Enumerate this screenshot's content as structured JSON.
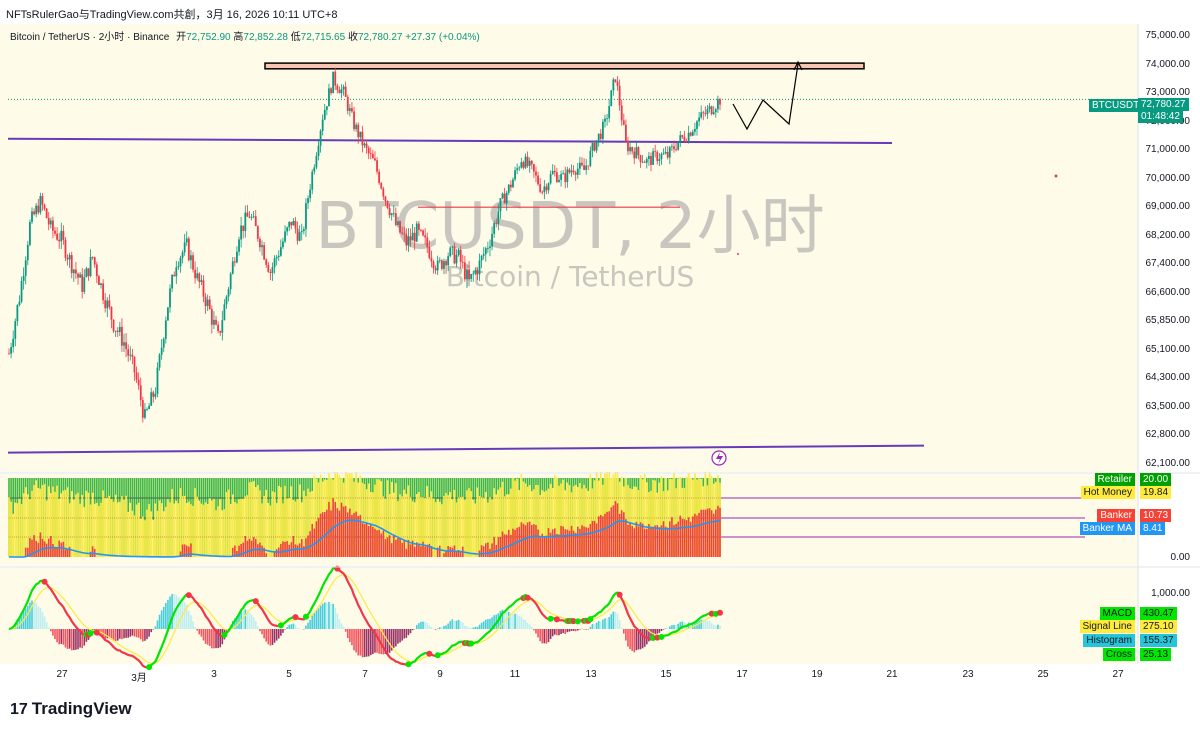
{
  "header": {
    "source": "NFTsRulerGao与TradingView.com共創，3月 16, 2026 10:11 UTC+8"
  },
  "symbol": {
    "title": "Bitcoin / TetherUS · 2小时 · Binance",
    "open_label": "开",
    "open": "72,752.90",
    "high_label": "高",
    "high": "72,852.28",
    "low_label": "低",
    "low": "72,715.65",
    "close_label": "收",
    "close": "72,780.27",
    "change": "+27.37 (+0.04%)"
  },
  "watermark": {
    "main": "BTCUSDT, 2小时",
    "sub": "Bitcoin / TetherUS"
  },
  "price_tag": {
    "ticker": "BTCUSDT",
    "price": "72,780.27",
    "countdown": "01:48:42"
  },
  "price_axis": [
    "75,000.00",
    "74,000.00",
    "73,000.00",
    "72,000.00",
    "71,000.00",
    "70,000.00",
    "69,000.00",
    "68,200.00",
    "67,400.00",
    "66,600.00",
    "65,850.00",
    "65,100.00",
    "64,300.00",
    "63,500.00",
    "62,800.00",
    "62,100.00"
  ],
  "indicator1": {
    "zero_label": "0.00",
    "labels": [
      {
        "name": "Retailer",
        "value": "20.00",
        "color": "#00a000"
      },
      {
        "name": "Hot Money",
        "value": "19.84",
        "color": "#ffeb3b"
      },
      {
        "name": "Banker",
        "value": "10.73",
        "color": "#f44336"
      },
      {
        "name": "Banker MA",
        "value": "8.41",
        "color": "#2196f3"
      }
    ]
  },
  "indicator2": {
    "top_label": "1,000.00",
    "labels": [
      {
        "name": "MACD",
        "value": "430.47",
        "color": "#00e600"
      },
      {
        "name": "Signal Line",
        "value": "275.10",
        "color": "#ffeb3b"
      },
      {
        "name": "Histogram",
        "value": "155.37",
        "color": "#26c6da"
      },
      {
        "name": "Cross",
        "value": "25.13",
        "color": "#00e600"
      }
    ]
  },
  "time_axis": [
    "27",
    "3月",
    "3",
    "5",
    "7",
    "9",
    "11",
    "13",
    "15",
    "17",
    "19",
    "21",
    "23",
    "25",
    "27"
  ],
  "brand": {
    "logo": "17",
    "name": "TradingView"
  },
  "colors": {
    "up": "#089981",
    "down": "#f23645",
    "pane_bg": "#fefbe9",
    "trendline": "#673ab7",
    "resistance": "#f8c5b0"
  },
  "chart_data": [
    {
      "type": "candlestick",
      "title": "Bitcoin / TetherUS · 2小时 · Binance",
      "x_axis_labels": [
        "27",
        "3月",
        "3",
        "5",
        "7",
        "9",
        "11",
        "13",
        "15",
        "17",
        "19",
        "21",
        "23",
        "25",
        "27"
      ],
      "ylim": [
        62100,
        75000
      ],
      "y_ticks": [
        75000,
        74000,
        73000,
        72000,
        71000,
        70000,
        69000,
        68200,
        67400,
        66600,
        65850,
        65100,
        64300,
        63500,
        62800,
        62100
      ],
      "series": [
        {
          "name": "BTCUSDT",
          "close_path": [
            [
              0,
              65000
            ],
            [
              5,
              66500
            ],
            [
              10,
              68500
            ],
            [
              15,
              69200
            ],
            [
              20,
              68400
            ],
            [
              25,
              68100
            ],
            [
              30,
              67400
            ],
            [
              35,
              66800
            ],
            [
              40,
              67600
            ],
            [
              45,
              66600
            ],
            [
              50,
              65800
            ],
            [
              55,
              65300
            ],
            [
              60,
              64500
            ],
            [
              65,
              63200
            ],
            [
              70,
              64000
            ],
            [
              75,
              66000
            ],
            [
              80,
              67500
            ],
            [
              85,
              67900
            ],
            [
              90,
              67000
            ],
            [
              95,
              66300
            ],
            [
              100,
              65400
            ],
            [
              105,
              66800
            ],
            [
              110,
              68300
            ],
            [
              115,
              68800
            ],
            [
              120,
              68100
            ],
            [
              125,
              67200
            ],
            [
              130,
              67900
            ],
            [
              135,
              68600
            ],
            [
              140,
              68100
            ],
            [
              145,
              70200
            ],
            [
              150,
              72200
            ],
            [
              155,
              73500
            ],
            [
              160,
              73000
            ],
            [
              165,
              71900
            ],
            [
              170,
              71100
            ],
            [
              175,
              70500
            ],
            [
              180,
              69300
            ],
            [
              185,
              68500
            ],
            [
              190,
              68000
            ],
            [
              195,
              68300
            ],
            [
              200,
              67900
            ],
            [
              205,
              67300
            ],
            [
              210,
              67700
            ],
            [
              215,
              67600
            ],
            [
              220,
              66900
            ],
            [
              225,
              67400
            ],
            [
              230,
              68100
            ],
            [
              235,
              69100
            ],
            [
              240,
              69800
            ],
            [
              245,
              70700
            ],
            [
              250,
              70300
            ],
            [
              255,
              69600
            ],
            [
              260,
              70200
            ],
            [
              265,
              70000
            ],
            [
              270,
              70400
            ],
            [
              275,
              70300
            ],
            [
              280,
              71200
            ],
            [
              285,
              71900
            ],
            [
              290,
              73600
            ],
            [
              295,
              71200
            ],
            [
              300,
              70900
            ],
            [
              305,
              70600
            ],
            [
              310,
              70800
            ],
            [
              315,
              70800
            ],
            [
              320,
              71300
            ],
            [
              325,
              71600
            ],
            [
              330,
              72100
            ],
            [
              335,
              72400
            ],
            [
              340,
              72780
            ]
          ]
        }
      ],
      "annotations": [
        "resistance box ~73,850–74,050",
        "trendline ~71,300",
        "trendline ~62,450",
        "midline ~69,000",
        "projected path up to ~74,200"
      ]
    },
    {
      "type": "area",
      "title": "Retailer / Hot Money / Banker / Banker MA",
      "ylim": [
        0,
        20
      ],
      "series": [
        {
          "name": "Retailer",
          "value": 20.0
        },
        {
          "name": "Hot Money",
          "value": 19.84
        },
        {
          "name": "Banker",
          "value": 10.73
        },
        {
          "name": "Banker MA",
          "value": 8.41
        }
      ]
    },
    {
      "type": "line",
      "title": "MACD",
      "series": [
        {
          "name": "MACD",
          "value": 430.47
        },
        {
          "name": "Signal Line",
          "value": 275.1
        },
        {
          "name": "Histogram",
          "value": 155.37
        },
        {
          "name": "Cross",
          "value": 25.13
        }
      ]
    }
  ]
}
